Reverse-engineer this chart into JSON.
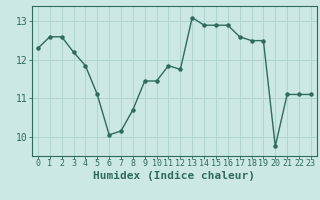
{
  "x": [
    0,
    1,
    2,
    3,
    4,
    5,
    6,
    7,
    8,
    9,
    10,
    11,
    12,
    13,
    14,
    15,
    16,
    17,
    18,
    19,
    20,
    21,
    22,
    23
  ],
  "y": [
    12.3,
    12.6,
    12.6,
    12.2,
    11.85,
    11.1,
    10.05,
    10.15,
    10.7,
    11.45,
    11.45,
    11.85,
    11.75,
    13.1,
    12.9,
    12.9,
    12.9,
    12.6,
    12.5,
    12.5,
    9.75,
    11.1,
    11.1,
    11.1
  ],
  "xlabel": "Humidex (Indice chaleur)",
  "yticks": [
    10,
    11,
    12,
    13
  ],
  "xticks": [
    0,
    1,
    2,
    3,
    4,
    5,
    6,
    7,
    8,
    9,
    10,
    11,
    12,
    13,
    14,
    15,
    16,
    17,
    18,
    19,
    20,
    21,
    22,
    23
  ],
  "ylim": [
    9.5,
    13.4
  ],
  "xlim": [
    -0.5,
    23.5
  ],
  "line_color": "#2e6b5e",
  "bg_color": "#cce8e4",
  "grid_color": "#b0d4cf",
  "axis_color": "#2e6b5e",
  "tick_fontsize": 6,
  "ylabel_fontsize": 7,
  "xlabel_fontsize": 8
}
